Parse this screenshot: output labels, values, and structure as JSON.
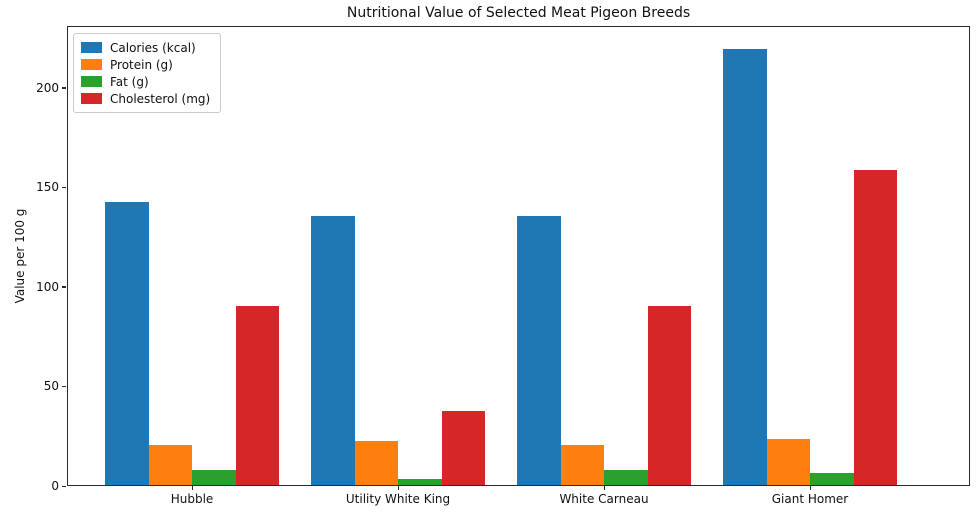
{
  "chart_data": {
    "type": "bar",
    "title": "Nutritional Value of Selected Meat Pigeon Breeds",
    "xlabel": "",
    "ylabel": "Value per 100 g",
    "categories": [
      "Hubble",
      "Utility White King",
      "White Carneau",
      "Giant Homer"
    ],
    "series": [
      {
        "name": "Calories (kcal)",
        "color": "#1f77b4",
        "values": [
          142,
          135,
          135,
          219
        ]
      },
      {
        "name": "Protein (g)",
        "color": "#ff7f0e",
        "values": [
          20,
          22,
          20,
          23
        ]
      },
      {
        "name": "Fat (g)",
        "color": "#2ca02c",
        "values": [
          7.5,
          3,
          7.5,
          6
        ]
      },
      {
        "name": "Cholesterol (mg)",
        "color": "#d62728",
        "values": [
          90,
          37,
          90,
          158
        ]
      }
    ],
    "yticks": [
      0,
      50,
      100,
      150,
      200
    ],
    "ylim": [
      0,
      231
    ],
    "grid": false,
    "legend_position": "upper left",
    "background_color": "#ffffff"
  }
}
